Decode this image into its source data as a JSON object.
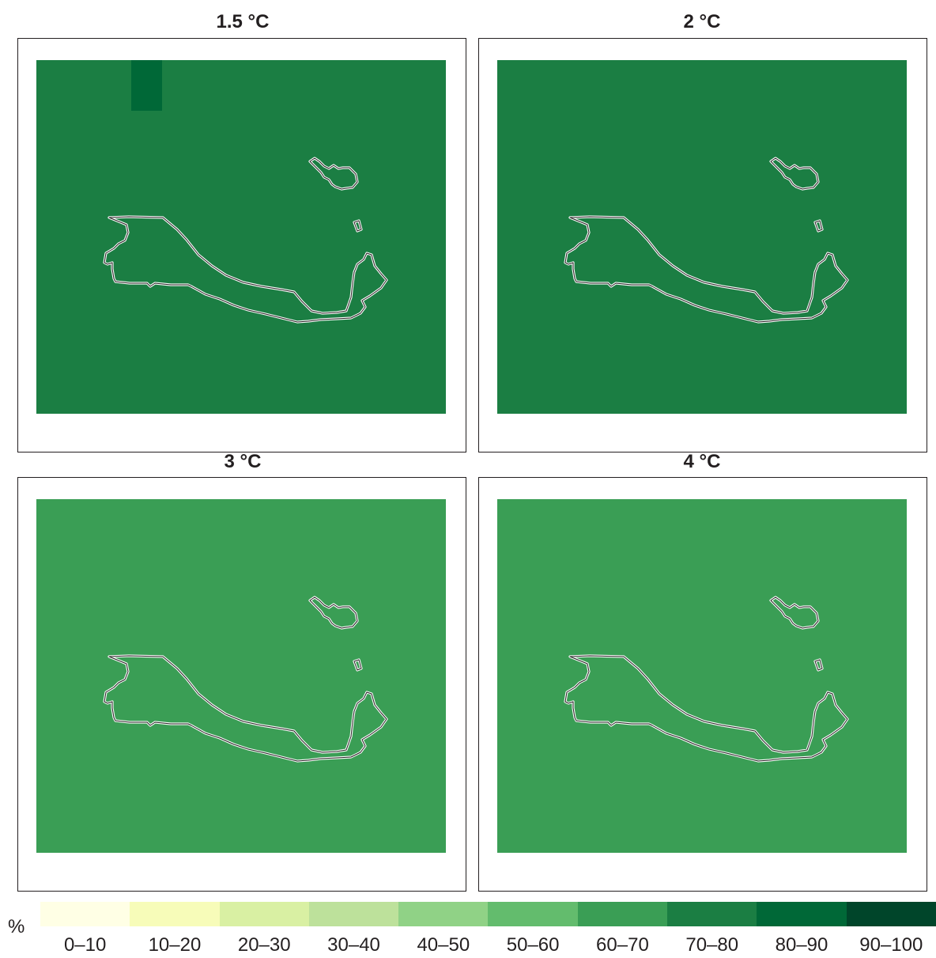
{
  "panels": [
    {
      "title": "1.5 °C",
      "fill": "#1b7e43",
      "cells": [
        {
          "color": "#006837"
        }
      ]
    },
    {
      "title": "2 °C",
      "fill": "#1b7e43",
      "cells": []
    },
    {
      "title": "3 °C",
      "fill": "#3a9e55",
      "cells": []
    },
    {
      "title": "4 °C",
      "fill": "#3a9e55",
      "cells": []
    }
  ],
  "outline_color": "#ffffff",
  "legend": {
    "unit": "%",
    "classes": [
      {
        "label": "0–10",
        "color": "#ffffe5"
      },
      {
        "label": "10–20",
        "color": "#f7fcb9"
      },
      {
        "label": "20–30",
        "color": "#d9f0a3"
      },
      {
        "label": "30–40",
        "color": "#bde19b"
      },
      {
        "label": "40–50",
        "color": "#90d286"
      },
      {
        "label": "50–60",
        "color": "#63bc6d"
      },
      {
        "label": "60–70",
        "color": "#3a9e55"
      },
      {
        "label": "70–80",
        "color": "#1b7e43"
      },
      {
        "label": "80–90",
        "color": "#006837"
      },
      {
        "label": "90–100",
        "color": "#00452a"
      }
    ]
  }
}
